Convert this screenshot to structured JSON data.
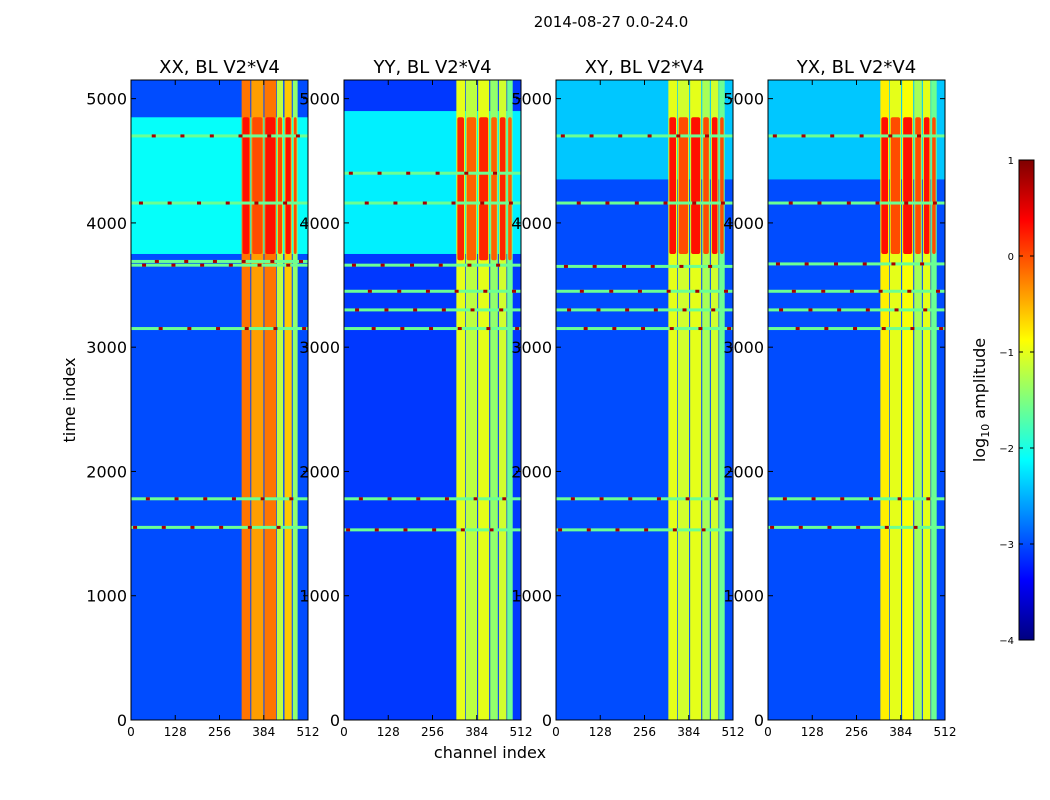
{
  "figure": {
    "suptitle": "2014-08-27 0.0-24.0",
    "colors": {
      "cmap": [
        "#00007f",
        "#0000ff",
        "#007fff",
        "#00ffff",
        "#7fff7f",
        "#ffff00",
        "#ff7f00",
        "#ff0000",
        "#7f0000"
      ]
    }
  },
  "chart_data": [
    {
      "type": "heatmap",
      "title": "XX, BL V2*V4",
      "xlabel": "",
      "ylabel": "time index",
      "xlim": [
        0,
        512
      ],
      "ylim": [
        0,
        5150
      ],
      "xticks": [
        0,
        128,
        256,
        384,
        512
      ],
      "yticks": [
        0,
        1000,
        2000,
        3000,
        4000,
        5000
      ],
      "value_label": "log10 amplitude",
      "zlim": [
        -4,
        1
      ],
      "background_level": -3.0,
      "elevated_region": {
        "t_start": 3750,
        "t_end": 4850,
        "level": -2.1
      },
      "band_channels": [
        [
          320,
          345,
          -0.2
        ],
        [
          348,
          383,
          -0.4
        ],
        [
          386,
          420,
          -0.2
        ],
        [
          422,
          440,
          -1.2
        ],
        [
          444,
          465,
          -0.6
        ],
        [
          468,
          482,
          -1.4
        ]
      ],
      "hot_block": {
        "t_start": 3750,
        "t_end": 4850,
        "level": 0.3
      },
      "lower_band_level": -0.6,
      "rfi_rows": [
        1550,
        1780,
        3150,
        3660,
        3690,
        4160,
        4700
      ]
    },
    {
      "type": "heatmap",
      "title": "YY, BL V2*V4",
      "xlabel": "channel index",
      "ylabel": "",
      "xlim": [
        0,
        512
      ],
      "ylim": [
        0,
        5150
      ],
      "xticks": [
        0,
        128,
        256,
        384,
        512
      ],
      "yticks": [
        0,
        1000,
        2000,
        3000,
        4000,
        5000
      ],
      "value_label": "log10 amplitude",
      "zlim": [
        -4,
        1
      ],
      "background_level": -3.1,
      "elevated_region": {
        "t_start": 3750,
        "t_end": 4900,
        "level": -2.2
      },
      "band_channels": [
        [
          325,
          350,
          -1.0
        ],
        [
          352,
          385,
          -1.2
        ],
        [
          388,
          420,
          -1.0
        ],
        [
          423,
          445,
          -1.4
        ],
        [
          448,
          470,
          -1.1
        ],
        [
          472,
          488,
          -1.6
        ]
      ],
      "hot_block": {
        "t_start": 3700,
        "t_end": 4850,
        "level": 0.2
      },
      "lower_band_level": -1.2,
      "rfi_rows": [
        1530,
        1780,
        3150,
        3300,
        3450,
        3660,
        4160,
        4400
      ]
    },
    {
      "type": "heatmap",
      "title": "XY, BL V2*V4",
      "xlabel": "",
      "ylabel": "",
      "xlim": [
        0,
        512
      ],
      "ylim": [
        0,
        5150
      ],
      "xticks": [
        0,
        128,
        256,
        384,
        512
      ],
      "yticks": [
        0,
        1000,
        2000,
        3000,
        4000,
        5000
      ],
      "value_label": "log10 amplitude",
      "zlim": [
        -4,
        1
      ],
      "background_level": -3.0,
      "elevated_region": {
        "t_start": 4350,
        "t_end": 5150,
        "level": -2.4
      },
      "band_channels": [
        [
          325,
          350,
          -1.0
        ],
        [
          352,
          385,
          -1.1
        ],
        [
          388,
          420,
          -1.0
        ],
        [
          423,
          445,
          -1.3
        ],
        [
          448,
          470,
          -1.1
        ],
        [
          472,
          488,
          -1.6
        ]
      ],
      "hot_block": {
        "t_start": 3750,
        "t_end": 4850,
        "level": 0.3
      },
      "lower_band_level": -1.0,
      "rfi_rows": [
        1530,
        1780,
        3150,
        3300,
        3450,
        3650,
        4160,
        4700
      ]
    },
    {
      "type": "heatmap",
      "title": "YX, BL V2*V4",
      "xlabel": "",
      "ylabel": "",
      "xlim": [
        0,
        512
      ],
      "ylim": [
        0,
        5150
      ],
      "xticks": [
        0,
        128,
        256,
        384,
        512
      ],
      "yticks": [
        0,
        1000,
        2000,
        3000,
        4000,
        5000
      ],
      "value_label": "log10 amplitude",
      "zlim": [
        -4,
        1
      ],
      "background_level": -3.0,
      "elevated_region": {
        "t_start": 4350,
        "t_end": 5150,
        "level": -2.4
      },
      "band_channels": [
        [
          325,
          350,
          -0.8
        ],
        [
          352,
          385,
          -1.0
        ],
        [
          388,
          420,
          -0.9
        ],
        [
          423,
          445,
          -1.3
        ],
        [
          448,
          470,
          -1.0
        ],
        [
          472,
          488,
          -1.6
        ]
      ],
      "hot_block": {
        "t_start": 3750,
        "t_end": 4850,
        "level": 0.3
      },
      "lower_band_level": -0.8,
      "rfi_rows": [
        1550,
        1780,
        3150,
        3300,
        3450,
        3670,
        4160,
        4700
      ]
    }
  ],
  "colorbar": {
    "label_prefix": "log",
    "label_sub": "10",
    "label_suffix": " amplitude",
    "ticks": [
      1,
      0,
      -1,
      -2,
      -3,
      -4
    ],
    "tick_labels": [
      "1",
      "0",
      "−1",
      "−2",
      "−3",
      "−4"
    ],
    "range": [
      -4,
      1
    ]
  }
}
